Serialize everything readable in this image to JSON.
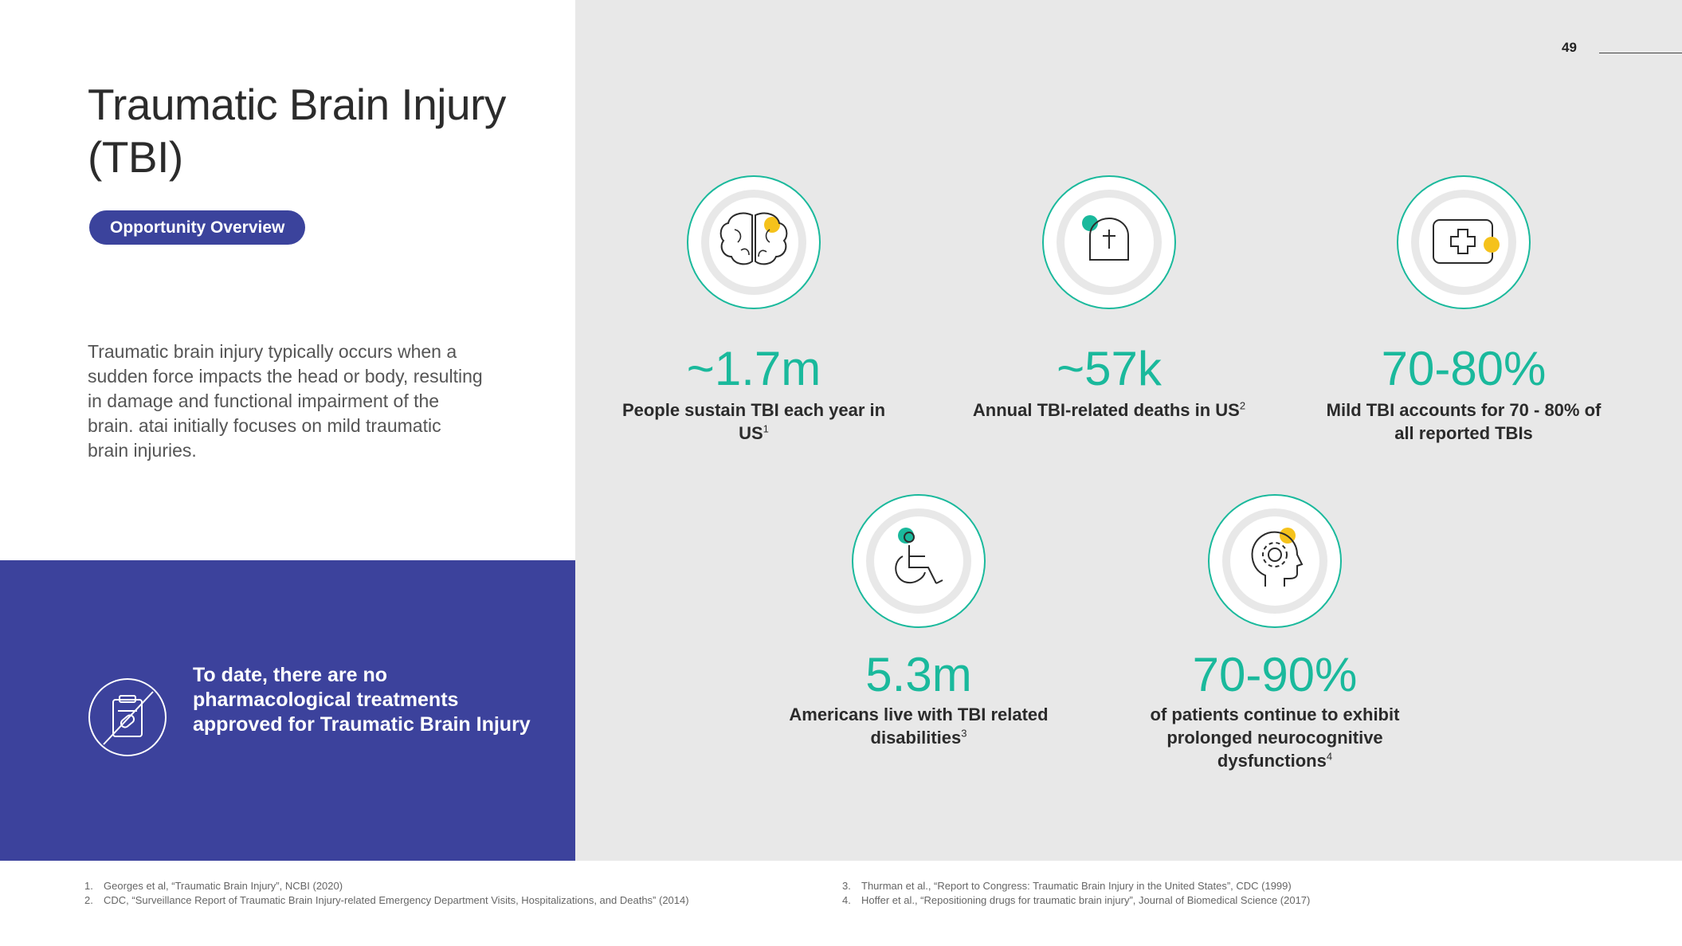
{
  "title": "Traumatic Brain Injury (TBI)",
  "badge": "Opportunity Overview",
  "description": "Traumatic brain injury typically occurs when a sudden force impacts the head or body, resulting in damage and functional impairment of the brain. atai initially focuses on mild traumatic brain injuries.",
  "callout": {
    "text": "To date, there are no pharmacological treatments approved for Traumatic Brain Injury",
    "icon": "no-medication-icon"
  },
  "page_number": "49",
  "colors": {
    "accent": "#1ab99c",
    "brand": "#3c429c",
    "yellow": "#f5c21b",
    "panel": "#e8e8e8"
  },
  "stats": [
    {
      "value": "~1.7m",
      "label": "People sustain TBI each year in US",
      "ref": "1",
      "icon": "brain-icon"
    },
    {
      "value": "~57k",
      "label": "Annual TBI-related deaths in US",
      "ref": "2",
      "icon": "tombstone-icon"
    },
    {
      "value": "70-80%",
      "label": "Mild TBI accounts for 70 - 80% of all reported TBIs",
      "ref": "",
      "icon": "first-aid-kit-icon"
    },
    {
      "value": "5.3m",
      "label": "Americans live with TBI related disabilities",
      "ref": "3",
      "icon": "wheelchair-icon"
    },
    {
      "value": "70-90%",
      "label": "of patients continue to exhibit prolonged neurocognitive dysfunctions",
      "ref": "4",
      "icon": "head-gear-icon"
    }
  ],
  "footnotes": [
    {
      "num": "1.",
      "text": "Georges et al, “Traumatic Brain Injury”, NCBI (2020)"
    },
    {
      "num": "2.",
      "text": "CDC, “Surveillance Report of Traumatic Brain Injury-related Emergency Department Visits, Hospitalizations, and Deaths” (2014)"
    },
    {
      "num": "3.",
      "text": "Thurman et al., “Report to Congress: Traumatic Brain Injury in the United States”, CDC (1999)"
    },
    {
      "num": "4.",
      "text": "Hoffer et al., “Repositioning drugs for traumatic brain injury”, Journal of Biomedical Science (2017)"
    }
  ]
}
